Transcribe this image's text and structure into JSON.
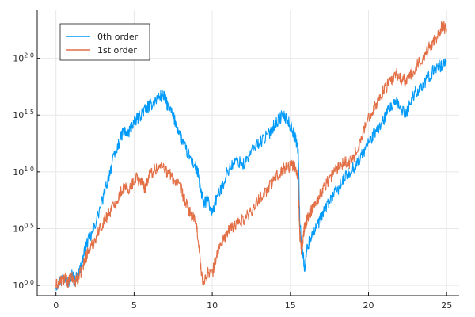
{
  "chart_data": {
    "type": "line",
    "title": "",
    "xlabel": "",
    "ylabel": "",
    "xlim": [
      -1.2,
      25.8
    ],
    "ylim": [
      -0.09,
      2.43
    ],
    "y_scale": "log10",
    "grid": true,
    "legend_placement": "top-left",
    "x_ticks": [
      "0",
      "5",
      "10",
      "15",
      "20",
      "25"
    ],
    "x_tick_values": [
      0,
      5,
      10,
      15,
      20,
      25
    ],
    "y_ticks": [
      {
        "base": "10",
        "exp": "0.0",
        "value": 0.0
      },
      {
        "base": "10",
        "exp": "0.5",
        "value": 0.5
      },
      {
        "base": "10",
        "exp": "1.0",
        "value": 1.0
      },
      {
        "base": "10",
        "exp": "1.5",
        "value": 1.5
      },
      {
        "base": "10",
        "exp": "2.0",
        "value": 2.0
      }
    ],
    "series": [
      {
        "name": "0th order",
        "color": "#009af9",
        "x": [
          0,
          0.3,
          0.6,
          0.8,
          1.0,
          1.2,
          1.5,
          1.8,
          2.0,
          2.3,
          2.6,
          3.0,
          3.3,
          3.6,
          4.0,
          4.3,
          4.6,
          4.9,
          5.1,
          5.4,
          5.7,
          6.0,
          6.3,
          6.6,
          6.9,
          7.1,
          7.4,
          7.7,
          8.0,
          8.3,
          8.6,
          8.9,
          9.1,
          9.3,
          9.5,
          9.7,
          10.0,
          10.3,
          10.6,
          10.9,
          11.2,
          11.6,
          12.0,
          12.4,
          12.8,
          13.2,
          13.6,
          13.9,
          14.2,
          14.5,
          14.8,
          15.1,
          15.3,
          15.5,
          15.6,
          15.7,
          15.8,
          15.9,
          16.1,
          16.4,
          16.7,
          17.0,
          17.3,
          17.6,
          17.9,
          18.2,
          18.5,
          18.8,
          19.1,
          19.4,
          19.7,
          20.0,
          20.3,
          20.6,
          20.9,
          21.2,
          21.5,
          21.8,
          22.1,
          22.4,
          22.7,
          23.0,
          23.3,
          23.6,
          23.9,
          24.2,
          24.5,
          24.7,
          25.0
        ],
        "values": [
          0.0,
          0.05,
          0.08,
          0.02,
          0.1,
          0.04,
          0.12,
          0.28,
          0.38,
          0.45,
          0.58,
          0.76,
          0.92,
          1.08,
          1.24,
          1.36,
          1.33,
          1.42,
          1.45,
          1.5,
          1.55,
          1.58,
          1.62,
          1.66,
          1.68,
          1.6,
          1.52,
          1.42,
          1.3,
          1.2,
          1.12,
          1.05,
          0.98,
          0.8,
          0.72,
          0.75,
          0.64,
          0.78,
          0.85,
          0.98,
          1.05,
          1.1,
          1.06,
          1.15,
          1.24,
          1.28,
          1.33,
          1.4,
          1.45,
          1.5,
          1.46,
          1.38,
          1.3,
          1.2,
          0.6,
          0.38,
          0.3,
          0.14,
          0.35,
          0.45,
          0.52,
          0.6,
          0.7,
          0.76,
          0.82,
          0.88,
          0.95,
          1.0,
          1.05,
          1.1,
          1.18,
          1.26,
          1.32,
          1.38,
          1.44,
          1.52,
          1.58,
          1.6,
          1.56,
          1.5,
          1.62,
          1.7,
          1.74,
          1.78,
          1.84,
          1.9,
          1.95,
          1.92,
          1.98
        ]
      },
      {
        "name": "1st order",
        "color": "#e26f46",
        "x": [
          0,
          0.3,
          0.6,
          0.8,
          1.0,
          1.2,
          1.5,
          1.8,
          2.0,
          2.3,
          2.6,
          3.0,
          3.3,
          3.6,
          4.0,
          4.3,
          4.6,
          4.9,
          5.1,
          5.4,
          5.7,
          6.0,
          6.3,
          6.6,
          6.9,
          7.1,
          7.4,
          7.7,
          8.0,
          8.3,
          8.6,
          8.9,
          9.1,
          9.3,
          9.5,
          9.7,
          10.0,
          10.3,
          10.6,
          10.9,
          11.2,
          11.6,
          12.0,
          12.4,
          12.8,
          13.2,
          13.6,
          13.9,
          14.2,
          14.5,
          14.8,
          15.1,
          15.3,
          15.5,
          15.6,
          15.7,
          15.8,
          15.9,
          16.1,
          16.4,
          16.7,
          17.0,
          17.3,
          17.6,
          17.9,
          18.2,
          18.5,
          18.8,
          19.1,
          19.4,
          19.7,
          20.0,
          20.3,
          20.6,
          20.9,
          21.2,
          21.5,
          21.8,
          22.1,
          22.4,
          22.7,
          23.0,
          23.3,
          23.6,
          23.9,
          24.2,
          24.5,
          24.7,
          25.0
        ],
        "values": [
          0.0,
          0.04,
          0.06,
          0.03,
          0.07,
          0.03,
          0.08,
          0.2,
          0.28,
          0.35,
          0.44,
          0.55,
          0.62,
          0.68,
          0.78,
          0.86,
          0.84,
          0.9,
          0.95,
          0.92,
          0.86,
          0.98,
          1.02,
          1.04,
          1.05,
          1.0,
          0.96,
          0.9,
          0.85,
          0.72,
          0.64,
          0.56,
          0.42,
          0.1,
          0.02,
          0.12,
          0.1,
          0.28,
          0.38,
          0.45,
          0.5,
          0.55,
          0.58,
          0.64,
          0.72,
          0.8,
          0.86,
          0.92,
          0.98,
          1.02,
          1.04,
          1.06,
          1.05,
          0.94,
          0.45,
          0.32,
          0.38,
          0.5,
          0.6,
          0.68,
          0.75,
          0.82,
          0.9,
          0.96,
          1.02,
          1.06,
          1.1,
          1.08,
          1.15,
          1.24,
          1.36,
          1.48,
          1.56,
          1.62,
          1.7,
          1.76,
          1.8,
          1.86,
          1.82,
          1.8,
          1.85,
          1.9,
          1.98,
          2.02,
          2.1,
          2.16,
          2.22,
          2.28,
          2.26
        ]
      }
    ]
  }
}
